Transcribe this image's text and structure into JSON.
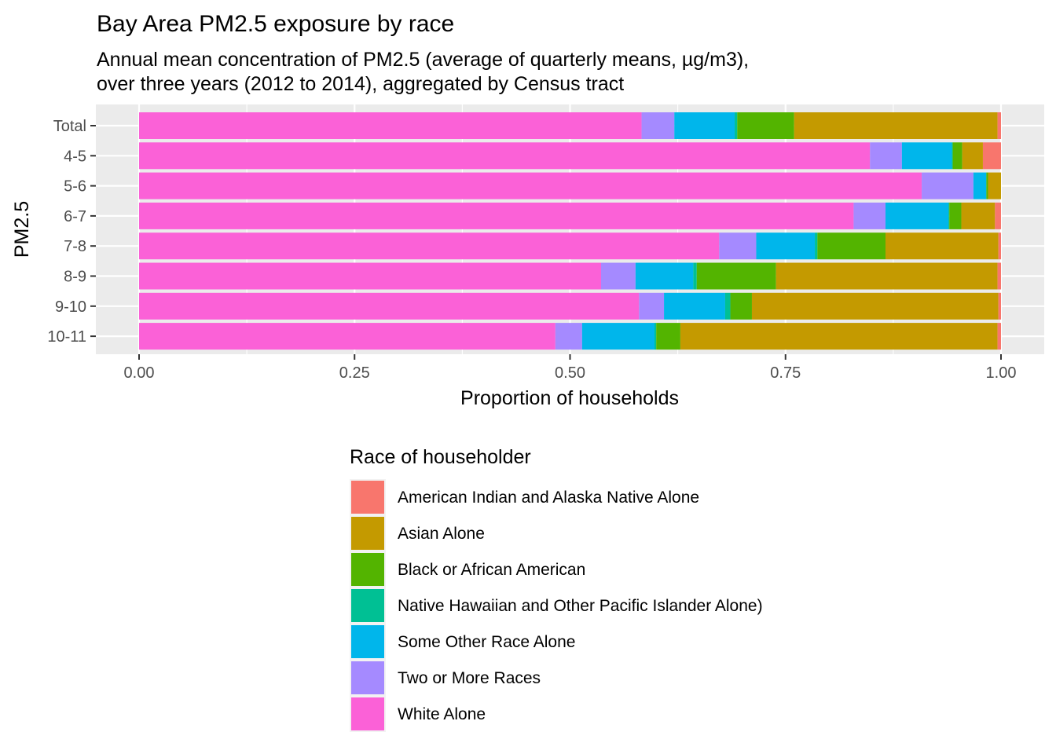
{
  "chart_data": {
    "type": "bar",
    "orientation": "horizontal",
    "stacked": "fill",
    "title": "Bay Area PM2.5 exposure by race",
    "subtitle": [
      "Annual mean concentration of PM2.5 (average of quarterly means, µg/m3),",
      "over three years (2012 to 2014), aggregated by Census tract"
    ],
    "xlabel": "Proportion of households",
    "ylabel": "PM2.5",
    "xlim": [
      0,
      1
    ],
    "xticks": [
      "0.00",
      "0.25",
      "0.50",
      "0.75",
      "1.00"
    ],
    "grid": true,
    "legend_position": "bottom",
    "legend_title": "Race of householder",
    "categories": [
      "Total",
      "4-5",
      "5-6",
      "6-7",
      "7-8",
      "8-9",
      "9-10",
      "10-11"
    ],
    "series": [
      {
        "name": "American Indian and Alaska Native Alone",
        "color": "#F8766D",
        "values": [
          0.004,
          0.021,
          0.0,
          0.007,
          0.003,
          0.004,
          0.003,
          0.004
        ]
      },
      {
        "name": "Asian Alone",
        "color": "#C49A00",
        "values": [
          0.236,
          0.024,
          0.015,
          0.039,
          0.131,
          0.257,
          0.286,
          0.368
        ]
      },
      {
        "name": "Black or African American",
        "color": "#53B400",
        "values": [
          0.066,
          0.011,
          0.002,
          0.014,
          0.079,
          0.092,
          0.025,
          0.028
        ]
      },
      {
        "name": "Native Hawaiian and Other Pacific Islander Alone)",
        "color": "#00C094",
        "values": [
          0.003,
          0.001,
          0.0,
          0.001,
          0.003,
          0.004,
          0.006,
          0.002
        ]
      },
      {
        "name": "Some Other Race Alone",
        "color": "#00B6EB",
        "values": [
          0.07,
          0.058,
          0.015,
          0.073,
          0.068,
          0.067,
          0.071,
          0.084
        ]
      },
      {
        "name": "Two or More Races",
        "color": "#A58AFF",
        "values": [
          0.038,
          0.037,
          0.06,
          0.037,
          0.043,
          0.04,
          0.029,
          0.031
        ]
      },
      {
        "name": "White Alone",
        "color": "#FB61D7",
        "values": [
          0.583,
          0.848,
          0.908,
          0.829,
          0.673,
          0.536,
          0.58,
          0.483
        ]
      }
    ]
  }
}
